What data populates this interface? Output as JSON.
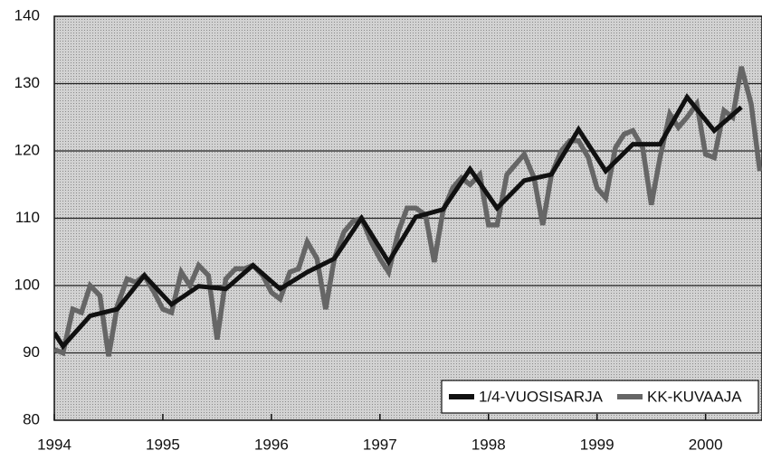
{
  "chart_data": {
    "type": "line",
    "series": [
      {
        "name": "1/4-VUOSISARJA",
        "color": "#111111",
        "x": [
          1994,
          1994.08,
          1994.33,
          1994.58,
          1994.83,
          1995.08,
          1995.33,
          1995.58,
          1995.83,
          1996.08,
          1996.33,
          1996.58,
          1996.83,
          1997.08,
          1997.33,
          1997.58,
          1997.83,
          1998.08,
          1998.33,
          1998.58,
          1998.83,
          1999.08,
          1999.33,
          1999.58,
          1999.83,
          2000.08,
          2000.33
        ],
        "values": [
          93,
          91,
          95.5,
          96.5,
          101.5,
          97.2,
          99.9,
          99.5,
          103,
          99.5,
          102,
          104,
          110,
          103.5,
          110.2,
          111.3,
          117.3,
          111.5,
          115.6,
          116.5,
          123.2,
          117,
          121,
          121,
          128,
          123,
          126.5
        ]
      },
      {
        "name": "KK-KUVAAJA",
        "color": "#666666",
        "x": [
          1994,
          1994.08,
          1994.17,
          1994.25,
          1994.33,
          1994.42,
          1994.5,
          1994.58,
          1994.67,
          1994.75,
          1994.83,
          1994.92,
          1995,
          1995.08,
          1995.17,
          1995.25,
          1995.33,
          1995.42,
          1995.5,
          1995.58,
          1995.67,
          1995.75,
          1995.83,
          1995.92,
          1996,
          1996.08,
          1996.17,
          1996.25,
          1996.33,
          1996.42,
          1996.5,
          1996.58,
          1996.67,
          1996.75,
          1996.83,
          1996.92,
          1997,
          1997.08,
          1997.17,
          1997.25,
          1997.33,
          1997.42,
          1997.5,
          1997.58,
          1997.67,
          1997.75,
          1997.83,
          1997.92,
          1998,
          1998.08,
          1998.17,
          1998.25,
          1998.33,
          1998.42,
          1998.5,
          1998.58,
          1998.67,
          1998.75,
          1998.83,
          1998.92,
          1999,
          1999.08,
          1999.17,
          1999.25,
          1999.33,
          1999.42,
          1999.5,
          1999.58,
          1999.67,
          1999.75,
          1999.83,
          1999.92,
          2000,
          2000.08,
          2000.17,
          2000.25,
          2000.33,
          2000.42,
          2000.5
        ],
        "values": [
          90.5,
          90,
          96.5,
          96,
          100,
          98.5,
          89.5,
          97,
          101,
          100.5,
          101.5,
          99,
          96.5,
          96,
          102,
          100,
          103,
          101.5,
          92,
          101,
          102.5,
          102.5,
          103,
          101.5,
          99,
          98,
          102,
          102.5,
          106.5,
          104,
          96.5,
          104,
          108,
          109.5,
          110,
          106.5,
          104,
          102,
          108,
          111.5,
          111.5,
          110.5,
          103.5,
          111,
          114.5,
          116,
          115,
          116.5,
          109,
          109,
          116.5,
          118,
          119.5,
          116,
          109,
          116.5,
          120,
          121.5,
          121.5,
          119,
          114.5,
          113,
          120.5,
          122.5,
          123,
          120.5,
          112,
          119,
          125.5,
          123.5,
          125,
          127,
          119.5,
          119,
          126,
          125,
          132.5,
          127,
          117
        ]
      }
    ],
    "xlim": [
      1994,
      2000.52
    ],
    "xticks": [
      1994,
      1995,
      1996,
      1997,
      1998,
      1999,
      2000
    ],
    "ylim": [
      80,
      140
    ],
    "yticks": [
      80,
      90,
      100,
      110,
      120,
      130,
      140
    ],
    "grid": true,
    "legend": "lower right"
  }
}
